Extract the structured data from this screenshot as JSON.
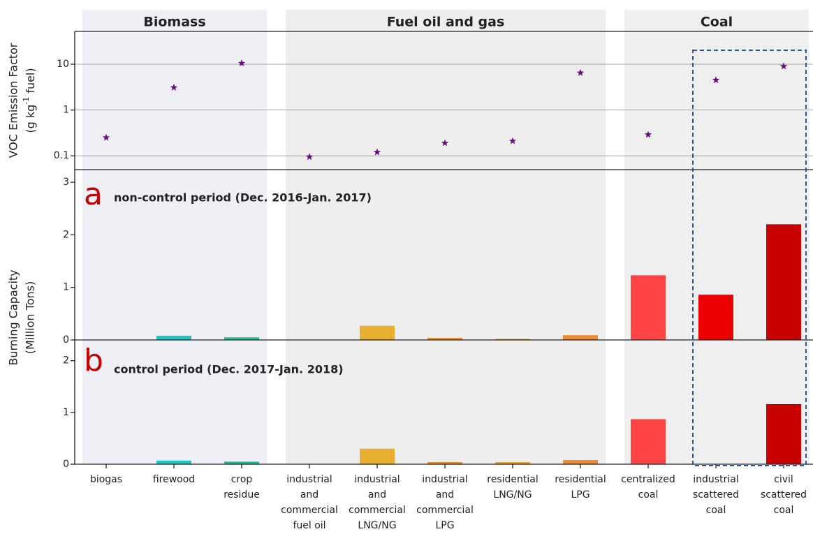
{
  "chart_data": [
    {
      "type": "scatter",
      "log_y": true,
      "ylabel": [
        "VOC Emission Factor",
        "(g kg",
        "-1",
        " fuel)"
      ],
      "groups": [
        {
          "name": "Biomass",
          "members": [
            0,
            1,
            2
          ],
          "color": "#eef0f6"
        },
        {
          "name": "Fuel oil and gas",
          "members": [
            3,
            4,
            5,
            6,
            7
          ],
          "color": "#eeeeee"
        },
        {
          "name": "Coal",
          "members": [
            8,
            9,
            10
          ],
          "color": "#efefef"
        }
      ],
      "values": [
        0.25,
        3.1,
        10.5,
        0.095,
        0.12,
        0.19,
        0.21,
        6.5,
        0.29,
        4.5,
        9.0
      ],
      "color": "#6a0d83",
      "ylim": [
        0.05,
        52
      ],
      "yticks": [
        0.1,
        1,
        10
      ],
      "grid": true
    },
    {
      "type": "bar",
      "annotation": [
        "a",
        "non-control period (Dec. 2016-Jan. 2017)"
      ],
      "ylabel": [
        "Burning Capacity",
        "(Million Tons)"
      ],
      "values": [
        0,
        0.08,
        0.05,
        0,
        0.27,
        0.04,
        0.02,
        0.09,
        1.23,
        0.86,
        2.2
      ],
      "colors": [
        "#1fc4c4",
        "#1fc4c4",
        "#22c08e",
        "#e8b030",
        "#e8b030",
        "#e8902a",
        "#e8a030",
        "#f08a30",
        "#ff4444",
        "#ee0000",
        "#c80000"
      ],
      "ylim": [
        0,
        3.24
      ],
      "yticks": [
        0,
        1,
        2,
        3
      ]
    },
    {
      "type": "bar",
      "annotation": [
        "b",
        "control period (Dec. 2017-Jan. 2018)"
      ],
      "categories": [
        [
          "biogas"
        ],
        [
          "firewood"
        ],
        [
          "crop",
          "residue"
        ],
        [
          "industrial",
          "and",
          "commercial",
          "fuel oil"
        ],
        [
          "industrial",
          "and",
          "commercial",
          "LNG/NG"
        ],
        [
          "industrial",
          "and",
          "commercial",
          "LPG"
        ],
        [
          "residential",
          "LNG/NG"
        ],
        [
          "residential",
          "LPG"
        ],
        [
          "centralized",
          "coal"
        ],
        [
          "industrial",
          "scattered",
          "coal"
        ],
        [
          "civil",
          "scattered",
          "coal"
        ]
      ],
      "values": [
        0,
        0.07,
        0.05,
        0,
        0.3,
        0.04,
        0.04,
        0.08,
        0.87,
        0,
        1.16
      ],
      "colors": [
        "#1fc4c4",
        "#1fc4c4",
        "#22c08e",
        "#e8b030",
        "#e8b030",
        "#e8902a",
        "#e8a030",
        "#f08a30",
        "#ff4444",
        "#ee0000",
        "#c80000"
      ],
      "ylim": [
        0,
        2.4
      ],
      "yticks": [
        0,
        1,
        2
      ]
    }
  ]
}
